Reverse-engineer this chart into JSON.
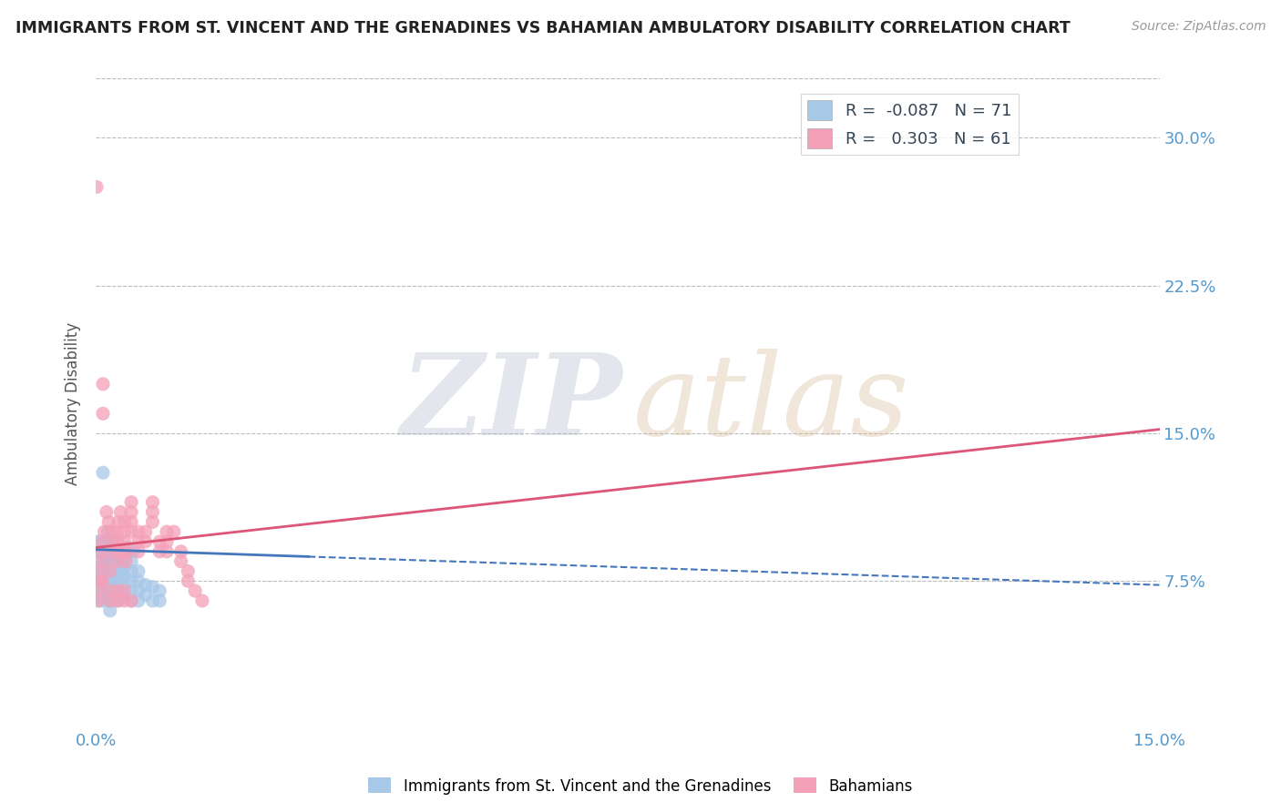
{
  "title": "IMMIGRANTS FROM ST. VINCENT AND THE GRENADINES VS BAHAMIAN AMBULATORY DISABILITY CORRELATION CHART",
  "source": "Source: ZipAtlas.com",
  "ylabel": "Ambulatory Disability",
  "R_blue": -0.087,
  "N_blue": 71,
  "R_pink": 0.303,
  "N_pink": 61,
  "xlim": [
    0.0,
    0.15
  ],
  "ylim": [
    0.0,
    0.33
  ],
  "yticks": [
    0.075,
    0.15,
    0.225,
    0.3
  ],
  "yticklabels": [
    "7.5%",
    "15.0%",
    "22.5%",
    "30.0%"
  ],
  "blue_color": "#a8c8e8",
  "pink_color": "#f4a0b8",
  "blue_line_color": "#4477bb",
  "pink_line_color": "#dd5577",
  "grid_color": "#bbbbbb",
  "axis_label_color": "#5599cc",
  "title_color": "#222222",
  "legend_label_blue": "Immigrants from St. Vincent and the Grenadines",
  "legend_label_pink": "Bahamians",
  "blue_line_y0": 0.091,
  "blue_line_y1": 0.073,
  "pink_line_y0": 0.092,
  "pink_line_y1": 0.152,
  "blue_scatter_x": [
    0.0002,
    0.0003,
    0.0004,
    0.0005,
    0.0006,
    0.0008,
    0.001,
    0.001,
    0.001,
    0.001,
    0.0012,
    0.0012,
    0.0014,
    0.0015,
    0.0015,
    0.0016,
    0.0017,
    0.0018,
    0.002,
    0.002,
    0.002,
    0.002,
    0.002,
    0.002,
    0.0022,
    0.0023,
    0.0025,
    0.0025,
    0.0026,
    0.003,
    0.003,
    0.003,
    0.003,
    0.003,
    0.0032,
    0.0033,
    0.0034,
    0.0035,
    0.004,
    0.004,
    0.004,
    0.004,
    0.0042,
    0.0044,
    0.005,
    0.005,
    0.005,
    0.005,
    0.005,
    0.0052,
    0.006,
    0.006,
    0.006,
    0.006,
    0.007,
    0.007,
    0.008,
    0.008,
    0.009,
    0.009,
    0.0001,
    0.0002,
    0.0003,
    0.0003,
    0.0004,
    0.0004,
    0.0005,
    0.001,
    0.001,
    0.001,
    0.001
  ],
  "blue_scatter_y": [
    0.075,
    0.082,
    0.09,
    0.078,
    0.095,
    0.088,
    0.065,
    0.07,
    0.075,
    0.08,
    0.085,
    0.09,
    0.072,
    0.068,
    0.073,
    0.095,
    0.1,
    0.088,
    0.06,
    0.065,
    0.07,
    0.075,
    0.08,
    0.085,
    0.09,
    0.095,
    0.065,
    0.07,
    0.078,
    0.072,
    0.075,
    0.08,
    0.085,
    0.09,
    0.065,
    0.07,
    0.078,
    0.083,
    0.068,
    0.072,
    0.077,
    0.082,
    0.087,
    0.092,
    0.065,
    0.07,
    0.075,
    0.08,
    0.085,
    0.09,
    0.065,
    0.07,
    0.075,
    0.08,
    0.068,
    0.073,
    0.065,
    0.072,
    0.065,
    0.07,
    0.075,
    0.082,
    0.09,
    0.095,
    0.075,
    0.068,
    0.065,
    0.072,
    0.078,
    0.083,
    0.13
  ],
  "pink_scatter_x": [
    0.0003,
    0.0005,
    0.0008,
    0.001,
    0.001,
    0.0012,
    0.0015,
    0.0018,
    0.002,
    0.002,
    0.0022,
    0.0025,
    0.003,
    0.003,
    0.003,
    0.003,
    0.0032,
    0.0035,
    0.004,
    0.004,
    0.004,
    0.004,
    0.0042,
    0.0045,
    0.005,
    0.005,
    0.005,
    0.005,
    0.006,
    0.006,
    0.006,
    0.007,
    0.007,
    0.008,
    0.008,
    0.008,
    0.009,
    0.009,
    0.01,
    0.01,
    0.01,
    0.011,
    0.012,
    0.012,
    0.013,
    0.013,
    0.014,
    0.015,
    0.0001,
    0.0003,
    0.0005,
    0.0008,
    0.001,
    0.001,
    0.002,
    0.002,
    0.003,
    0.003,
    0.004,
    0.004,
    0.005
  ],
  "pink_scatter_y": [
    0.08,
    0.09,
    0.075,
    0.085,
    0.095,
    0.1,
    0.11,
    0.105,
    0.08,
    0.09,
    0.1,
    0.095,
    0.085,
    0.09,
    0.095,
    0.1,
    0.105,
    0.11,
    0.09,
    0.095,
    0.1,
    0.105,
    0.085,
    0.09,
    0.1,
    0.105,
    0.11,
    0.115,
    0.09,
    0.095,
    0.1,
    0.095,
    0.1,
    0.105,
    0.11,
    0.115,
    0.09,
    0.095,
    0.1,
    0.09,
    0.095,
    0.1,
    0.085,
    0.09,
    0.08,
    0.075,
    0.07,
    0.065,
    0.275,
    0.065,
    0.07,
    0.075,
    0.16,
    0.175,
    0.065,
    0.07,
    0.065,
    0.07,
    0.065,
    0.07,
    0.065
  ]
}
